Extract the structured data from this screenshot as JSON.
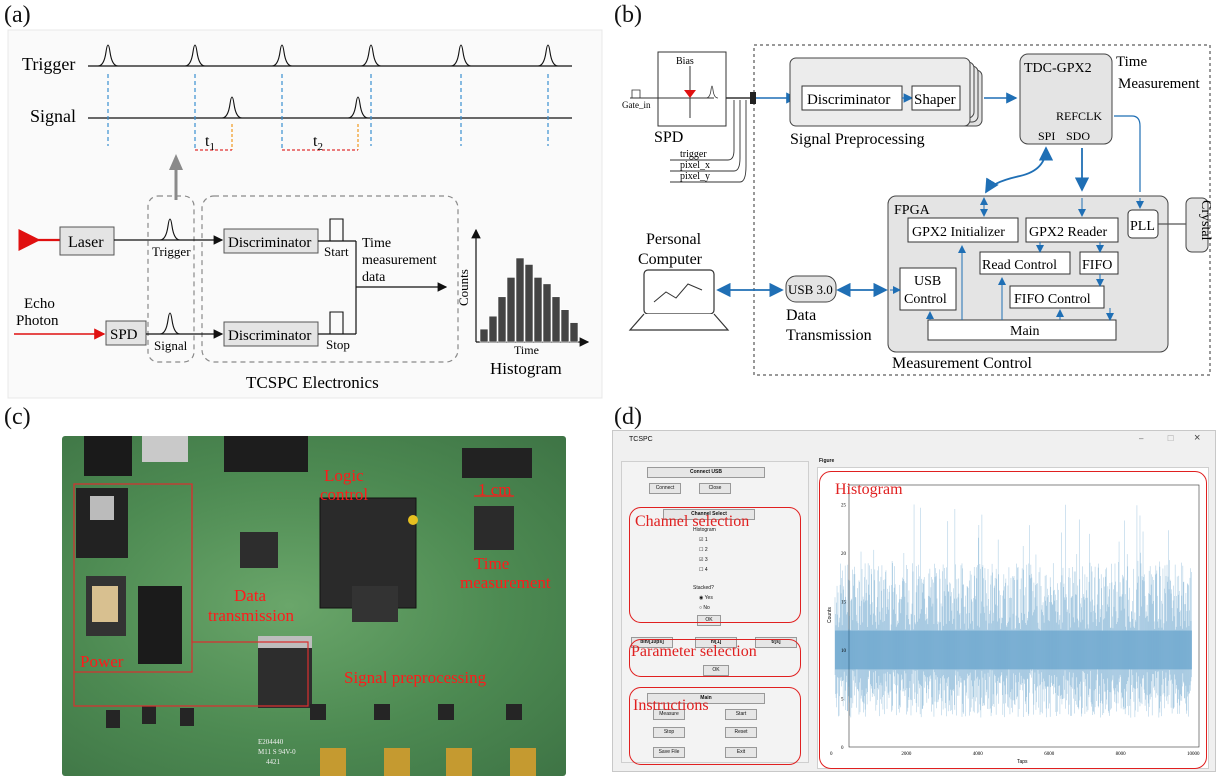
{
  "panels": {
    "a": "(a)",
    "b": "(b)",
    "c": "(c)",
    "d": "(d)"
  },
  "a": {
    "trigger": "Trigger",
    "signal": "Signal",
    "t1_base": "t",
    "t1_sub": "1",
    "t2_base": "t",
    "t2_sub": "2",
    "laser": "Laser",
    "spd": "SPD",
    "echo_line1": "Echo",
    "echo_line2": "Photon",
    "trigger_box": "Trigger",
    "signal_box": "Signal",
    "disc1": "Discriminator",
    "disc2": "Discriminator",
    "start": "Start",
    "stop": "Stop",
    "tmd_line1": "Time",
    "tmd_line2": "measurement",
    "tmd_line3": "data",
    "tcspc": "TCSPC Electronics",
    "histogram": "Histogram",
    "counts": "Counts",
    "time": "Time",
    "hist_bars": [
      2,
      4,
      7,
      10,
      13,
      12,
      10,
      9,
      7,
      5,
      3
    ]
  },
  "b": {
    "bias": "Bias",
    "gate_in": "Gate_in",
    "spd": "SPD",
    "trigger": "trigger",
    "pixel_x": "pixel_x",
    "pixel_y": "pixel_y",
    "discriminator": "Discriminator",
    "shaper": "Shaper",
    "signal_pre": "Signal Preprocessing",
    "tdc": "TDC-GPX2",
    "time_meas_line1": "Time",
    "time_meas_line2": "Measurement",
    "refclk": "REFCLK",
    "spi": "SPI",
    "sdo": "SDO",
    "fpga": "FPGA",
    "gpx2_init": "GPX2 Initializer",
    "gpx2_reader": "GPX2 Reader",
    "pll": "PLL",
    "crystal": "Crystal",
    "read_control": "Read Control",
    "fifo": "FIFO",
    "usb_control_line1": "USB",
    "usb_control_line2": "Control",
    "fifo_control": "FIFO Control",
    "main": "Main",
    "usb30": "USB 3.0",
    "data_tx_line1": "Data",
    "data_tx_line2": "Transmission",
    "pc_line1": "Personal",
    "pc_line2": "Computer",
    "meas_control": "Measurement Control"
  },
  "c": {
    "logic_line1": "Logic",
    "logic_line2": "control",
    "one_cm": "1 cm",
    "time_line1": "Time",
    "time_line2": "measurement",
    "data_line1": "Data",
    "data_line2": "transmission",
    "power": "Power",
    "signal_pre": "Signal preprocessing",
    "board_text_line1": "E204440",
    "board_text_line2": "M11 S 94V-0",
    "board_text_line3": "4421"
  },
  "d": {
    "window_title": "TCSPC",
    "win_min": "–",
    "win_max": "☐",
    "win_close": "×",
    "connect_usb": "Connect USB",
    "connect": "Connect",
    "close": "Close",
    "channel_select": "Channel Select",
    "histogram_small": "Histogram",
    "ch1": "1",
    "ch2": "2",
    "ch3": "3",
    "ch4": "4",
    "stacked": "Stacked?",
    "yes": "Yes",
    "no": "No",
    "ok1": "OK",
    "bin": "bin/[10ps]",
    "n": "n/[1]",
    "t": "t/[s]",
    "ok2": "OK",
    "main_small": "Main",
    "measure": "Measure",
    "start": "Start",
    "stop": "Stop",
    "reset": "Reset",
    "save_file": "Save File",
    "exit": "Exit",
    "figure": "Figure",
    "ann_histogram": "Histogram",
    "ann_channel": "Channel selection",
    "ann_parameter": "Parameter selection",
    "ann_instructions": "Instructions",
    "ylabel": "Counts",
    "xlabel": "Taps",
    "x_ticks": [
      "0",
      "2000",
      "4000",
      "6000",
      "8000",
      "10000"
    ],
    "y_ticks": [
      "0",
      "5",
      "10",
      "15",
      "20",
      "25"
    ],
    "accent": "#1f77b4"
  },
  "chart_data": [
    {
      "type": "bar",
      "title": "Histogram",
      "xlabel": "Time",
      "ylabel": "Counts",
      "values": [
        2,
        4,
        7,
        10,
        13,
        12,
        10,
        9,
        7,
        5,
        3
      ]
    },
    {
      "type": "bar",
      "title": "Histogram",
      "xlabel": "Taps",
      "ylabel": "Counts",
      "xlim": [
        0,
        10000
      ],
      "ylim": [
        0,
        27
      ],
      "x_ticks": [
        0,
        2000,
        4000,
        6000,
        8000,
        10000
      ],
      "y_ticks": [
        0,
        5,
        10,
        15,
        20,
        25
      ],
      "typical_range": [
        8,
        12
      ],
      "mean": 10
    }
  ]
}
